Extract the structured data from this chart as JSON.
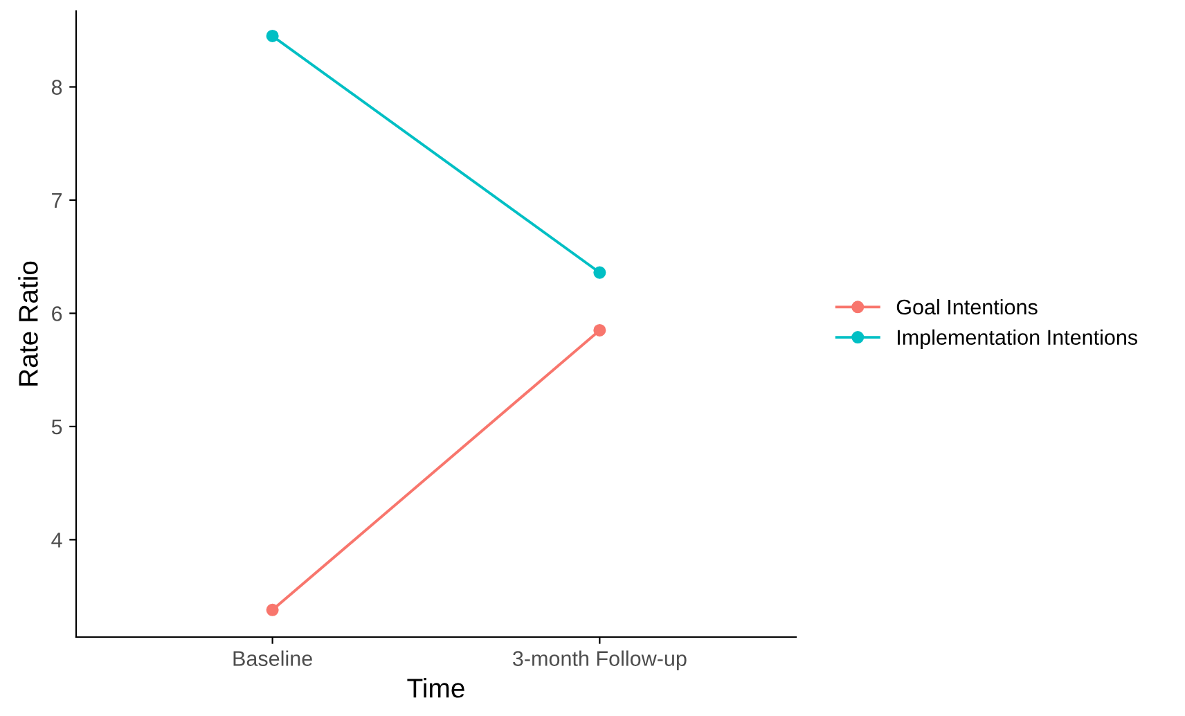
{
  "chart_data": {
    "type": "line",
    "xlabel": "Time",
    "ylabel": "Rate Ratio",
    "categories": [
      "Baseline",
      "3-month Follow-up"
    ],
    "series": [
      {
        "name": "Goal Intentions",
        "color": "#f8766d",
        "values": [
          3.38,
          5.85
        ]
      },
      {
        "name": "Implementation Intentions",
        "color": "#00bfc4",
        "values": [
          8.45,
          6.36
        ]
      }
    ],
    "ylim": [
      3.14,
      8.67
    ],
    "yticks": [
      4,
      5,
      6,
      7,
      8
    ],
    "grid": false,
    "legend": "right",
    "marker": "circle",
    "line_style": "solid"
  }
}
